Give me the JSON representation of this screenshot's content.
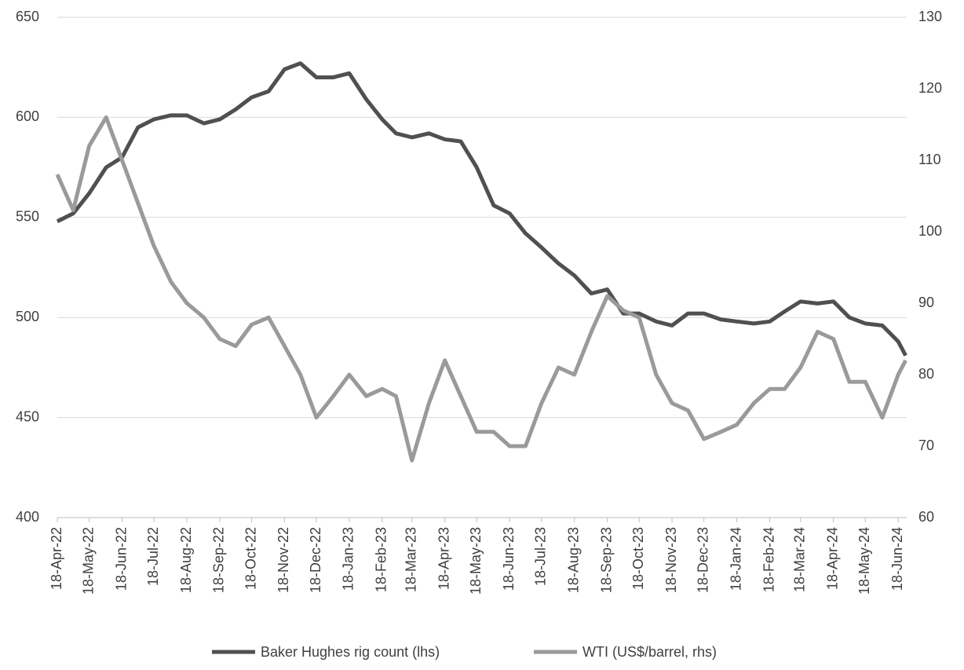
{
  "chart_data": {
    "type": "line",
    "x": [
      "2022-04-18",
      "2022-05-03",
      "2022-05-18",
      "2022-06-03",
      "2022-06-18",
      "2022-07-03",
      "2022-07-18",
      "2022-08-03",
      "2022-08-18",
      "2022-09-03",
      "2022-09-18",
      "2022-10-03",
      "2022-10-18",
      "2022-11-03",
      "2022-11-18",
      "2022-12-03",
      "2022-12-18",
      "2023-01-03",
      "2023-01-18",
      "2023-02-03",
      "2023-02-18",
      "2023-03-03",
      "2023-03-18",
      "2023-04-03",
      "2023-04-18",
      "2023-05-03",
      "2023-05-18",
      "2023-06-03",
      "2023-06-18",
      "2023-07-03",
      "2023-07-18",
      "2023-08-03",
      "2023-08-18",
      "2023-09-03",
      "2023-09-18",
      "2023-10-03",
      "2023-10-18",
      "2023-11-03",
      "2023-11-18",
      "2023-12-03",
      "2023-12-18",
      "2024-01-03",
      "2024-01-18",
      "2024-02-03",
      "2024-02-18",
      "2024-03-03",
      "2024-03-18",
      "2024-04-03",
      "2024-04-18",
      "2024-05-03",
      "2024-05-18",
      "2024-06-03",
      "2024-06-18",
      "2024-06-25"
    ],
    "series": [
      {
        "name": "Baker Hughes rig count (lhs)",
        "color": "#505050",
        "axis": "y",
        "values": [
          548,
          552,
          562,
          575,
          580,
          595,
          599,
          601,
          601,
          597,
          599,
          604,
          610,
          613,
          624,
          627,
          620,
          620,
          622,
          609,
          599,
          592,
          590,
          592,
          589,
          588,
          575,
          556,
          552,
          542,
          535,
          527,
          521,
          512,
          514,
          502,
          502,
          498,
          496,
          502,
          502,
          499,
          498,
          497,
          498,
          503,
          508,
          507,
          508,
          500,
          497,
          496,
          488,
          481
        ]
      },
      {
        "name": "WTI (US$/barrel, rhs)",
        "color": "#9a9a9a",
        "axis": "y2",
        "values": [
          108,
          103,
          112,
          116,
          110,
          104,
          98,
          93,
          90,
          88,
          85,
          84,
          87,
          88,
          84,
          80,
          74,
          77,
          80,
          77,
          78,
          77,
          68,
          76,
          82,
          77,
          72,
          72,
          70,
          70,
          76,
          81,
          80,
          86,
          91,
          89,
          88,
          80,
          76,
          75,
          71,
          72,
          73,
          76,
          78,
          78,
          81,
          86,
          85,
          79,
          79,
          74,
          80,
          82
        ]
      }
    ],
    "xlim": [
      "2022-04-18",
      "2024-06-26"
    ],
    "xticks": [
      {
        "value": "2022-04-18",
        "label": "18-Apr-22"
      },
      {
        "value": "2022-05-18",
        "label": "18-May-22"
      },
      {
        "value": "2022-06-18",
        "label": "18-Jun-22"
      },
      {
        "value": "2022-07-18",
        "label": "18-Jul-22"
      },
      {
        "value": "2022-08-18",
        "label": "18-Aug-22"
      },
      {
        "value": "2022-09-18",
        "label": "18-Sep-22"
      },
      {
        "value": "2022-10-18",
        "label": "18-Oct-22"
      },
      {
        "value": "2022-11-18",
        "label": "18-Nov-22"
      },
      {
        "value": "2022-12-18",
        "label": "18-Dec-22"
      },
      {
        "value": "2023-01-18",
        "label": "18-Jan-23"
      },
      {
        "value": "2023-02-18",
        "label": "18-Feb-23"
      },
      {
        "value": "2023-03-18",
        "label": "18-Mar-23"
      },
      {
        "value": "2023-04-18",
        "label": "18-Apr-23"
      },
      {
        "value": "2023-05-18",
        "label": "18-May-23"
      },
      {
        "value": "2023-06-18",
        "label": "18-Jun-23"
      },
      {
        "value": "2023-07-18",
        "label": "18-Jul-23"
      },
      {
        "value": "2023-08-18",
        "label": "18-Aug-23"
      },
      {
        "value": "2023-09-18",
        "label": "18-Sep-23"
      },
      {
        "value": "2023-10-18",
        "label": "18-Oct-23"
      },
      {
        "value": "2023-11-18",
        "label": "18-Nov-23"
      },
      {
        "value": "2023-12-18",
        "label": "18-Dec-23"
      },
      {
        "value": "2024-01-18",
        "label": "18-Jan-24"
      },
      {
        "value": "2024-02-18",
        "label": "18-Feb-24"
      },
      {
        "value": "2024-03-18",
        "label": "18-Mar-24"
      },
      {
        "value": "2024-04-18",
        "label": "18-Apr-24"
      },
      {
        "value": "2024-05-18",
        "label": "18-May-24"
      },
      {
        "value": "2024-06-18",
        "label": "18-Jun-24"
      }
    ],
    "ylim": [
      400,
      650
    ],
    "yticks": [
      400,
      450,
      500,
      550,
      600,
      650
    ],
    "y2lim": [
      60,
      130
    ],
    "y2ticks": [
      60,
      70,
      80,
      90,
      100,
      110,
      120,
      130
    ],
    "grid": true,
    "legend": "bottom"
  }
}
